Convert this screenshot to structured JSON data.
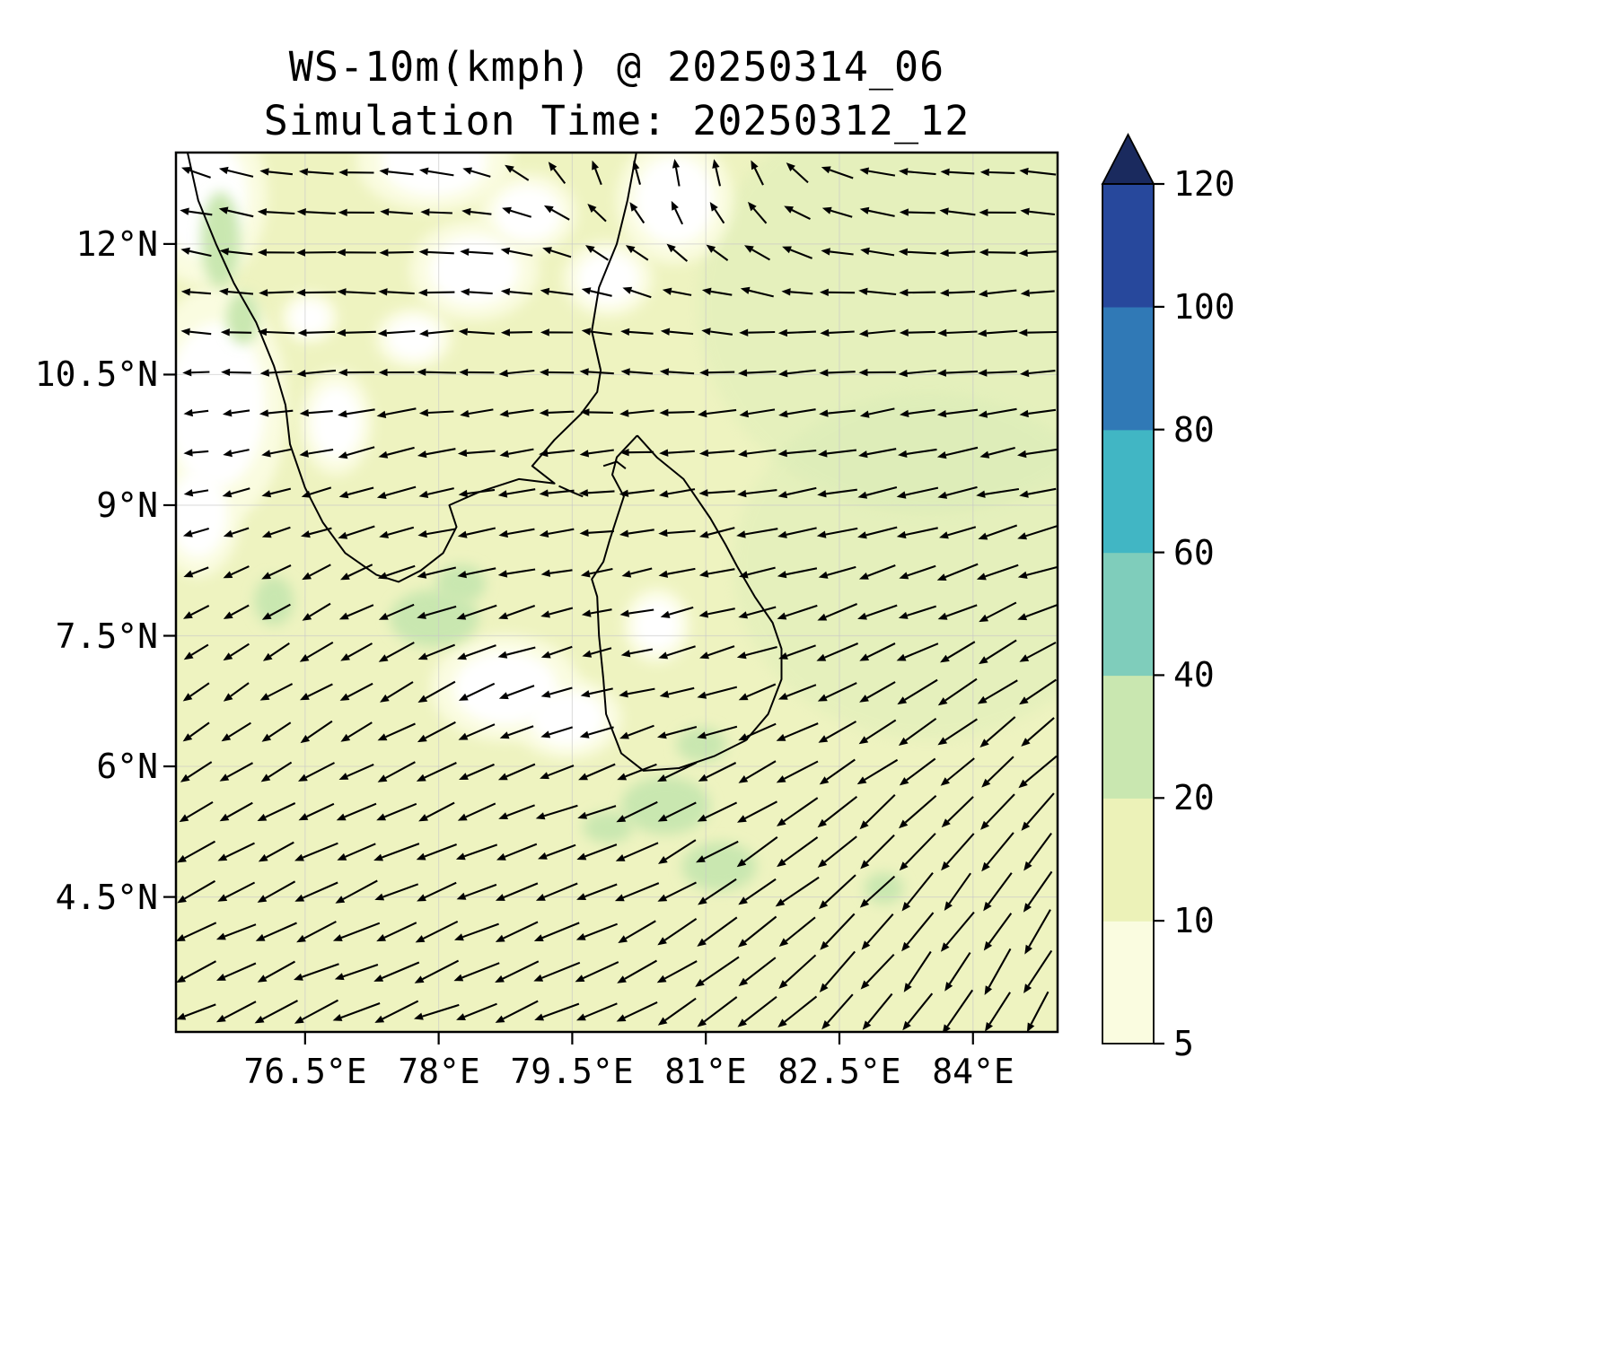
{
  "title": "WS-10m(kmph) @ 20250314_06",
  "subtitle": "Simulation Time: 20250312_12",
  "chart_data": {
    "type": "quiver_map",
    "variable": "WS-10m",
    "units": "kmph",
    "valid_time": "20250314_06",
    "simulation_time": "20250312_12",
    "lon_range": [
      75.05,
      84.95
    ],
    "lat_range": [
      2.95,
      13.05
    ],
    "xtick_values": [
      76.5,
      78,
      79.5,
      81,
      82.5,
      84
    ],
    "xtick_labels": [
      "76.5°E",
      "78°E",
      "79.5°E",
      "81°E",
      "82.5°E",
      "84°E"
    ],
    "ytick_values": [
      12,
      10.5,
      9,
      7.5,
      6,
      4.5
    ],
    "ytick_labels": [
      "12°N",
      "10.5°N",
      "9°N",
      "7.5°N",
      "6°N",
      "4.5°N"
    ],
    "grid": true,
    "colorbar": {
      "orientation": "vertical",
      "bounds": [
        5,
        10,
        20,
        40,
        60,
        80,
        100,
        120
      ],
      "tick_labels": [
        "5",
        "10",
        "20",
        "40",
        "60",
        "80",
        "100",
        "120"
      ],
      "segment_colors": [
        "#fafce0",
        "#ecf2b8",
        "#c9e7b0",
        "#7fcdbb",
        "#41b6c4",
        "#3079b6",
        "#27489c"
      ],
      "over_color": "#1a2a5e",
      "extend": "max"
    },
    "background_level_color": "#eef3c0",
    "wind_field": {
      "lons": [
        75.4,
        76.2,
        77.0,
        77.8,
        78.6,
        79.4,
        80.2,
        81.0,
        81.8,
        82.6,
        83.4,
        84.2
      ],
      "lats": [
        13.0,
        12.2,
        11.4,
        10.6,
        9.8,
        9.0,
        8.2,
        7.4,
        6.6,
        5.8,
        5.0,
        4.2,
        3.4
      ],
      "angle_deg": [
        [
          165,
          170,
          175,
          172,
          160,
          120,
          95,
          95,
          110,
          168,
          172,
          175
        ],
        [
          170,
          175,
          178,
          175,
          170,
          150,
          130,
          120,
          150,
          172,
          175,
          178
        ],
        [
          175,
          180,
          182,
          180,
          178,
          172,
          165,
          168,
          175,
          178,
          180,
          182
        ],
        [
          180,
          183,
          185,
          183,
          182,
          180,
          178,
          180,
          182,
          184,
          185,
          186
        ],
        [
          185,
          188,
          190,
          188,
          186,
          184,
          183,
          185,
          187,
          188,
          190,
          190
        ],
        [
          195,
          195,
          195,
          192,
          190,
          188,
          186,
          188,
          190,
          192,
          193,
          194
        ],
        [
          205,
          205,
          202,
          198,
          195,
          192,
          190,
          192,
          194,
          196,
          198,
          198
        ],
        [
          215,
          212,
          208,
          205,
          200,
          196,
          194,
          196,
          198,
          202,
          205,
          208
        ],
        [
          215,
          212,
          210,
          206,
          202,
          198,
          196,
          198,
          202,
          208,
          212,
          215
        ],
        [
          210,
          208,
          206,
          204,
          202,
          200,
          200,
          204,
          210,
          215,
          220,
          225
        ],
        [
          208,
          206,
          205,
          204,
          203,
          202,
          205,
          210,
          216,
          222,
          228,
          232
        ],
        [
          206,
          205,
          204,
          203,
          202,
          203,
          207,
          212,
          218,
          225,
          230,
          235
        ],
        [
          205,
          204,
          203,
          202,
          202,
          204,
          208,
          214,
          220,
          227,
          233,
          238
        ]
      ],
      "speed_rel": [
        [
          0.5,
          0.55,
          0.6,
          0.5,
          0.4,
          0.35,
          0.3,
          0.35,
          0.4,
          0.5,
          0.55,
          0.55
        ],
        [
          0.5,
          0.6,
          0.6,
          0.55,
          0.45,
          0.35,
          0.3,
          0.3,
          0.4,
          0.5,
          0.55,
          0.55
        ],
        [
          0.45,
          0.6,
          0.65,
          0.6,
          0.5,
          0.45,
          0.4,
          0.45,
          0.5,
          0.55,
          0.6,
          0.6
        ],
        [
          0.35,
          0.55,
          0.65,
          0.6,
          0.55,
          0.5,
          0.5,
          0.55,
          0.6,
          0.6,
          0.62,
          0.62
        ],
        [
          0.3,
          0.45,
          0.6,
          0.62,
          0.58,
          0.55,
          0.55,
          0.6,
          0.62,
          0.64,
          0.65,
          0.65
        ],
        [
          0.3,
          0.4,
          0.55,
          0.65,
          0.6,
          0.55,
          0.55,
          0.62,
          0.66,
          0.68,
          0.7,
          0.7
        ],
        [
          0.35,
          0.45,
          0.6,
          0.7,
          0.65,
          0.5,
          0.5,
          0.62,
          0.68,
          0.7,
          0.72,
          0.72
        ],
        [
          0.4,
          0.5,
          0.65,
          0.75,
          0.7,
          0.45,
          0.5,
          0.65,
          0.7,
          0.74,
          0.76,
          0.76
        ],
        [
          0.45,
          0.55,
          0.65,
          0.7,
          0.6,
          0.4,
          0.55,
          0.7,
          0.75,
          0.78,
          0.8,
          0.8
        ],
        [
          0.6,
          0.68,
          0.72,
          0.75,
          0.72,
          0.65,
          0.72,
          0.8,
          0.84,
          0.86,
          0.88,
          0.88
        ],
        [
          0.7,
          0.75,
          0.8,
          0.82,
          0.8,
          0.78,
          0.82,
          0.86,
          0.9,
          0.92,
          0.92,
          0.9
        ],
        [
          0.75,
          0.8,
          0.84,
          0.86,
          0.85,
          0.84,
          0.86,
          0.9,
          0.94,
          0.95,
          0.95,
          0.92
        ],
        [
          0.78,
          0.82,
          0.86,
          0.88,
          0.87,
          0.86,
          0.88,
          0.92,
          0.95,
          0.96,
          0.96,
          0.93
        ]
      ]
    },
    "white_patches": [
      [
        75.35,
        12.55,
        0.5,
        0.7
      ],
      [
        75.5,
        10.15,
        0.55,
        0.95
      ],
      [
        75.3,
        8.9,
        0.33,
        0.5
      ],
      [
        76.85,
        9.95,
        0.28,
        0.42
      ],
      [
        77.95,
        12.95,
        0.6,
        0.4
      ],
      [
        78.4,
        11.7,
        0.5,
        0.4
      ],
      [
        79.0,
        12.35,
        0.38,
        0.32
      ],
      [
        80.65,
        12.5,
        0.45,
        0.5
      ],
      [
        79.9,
        11.6,
        0.35,
        0.3
      ],
      [
        78.75,
        6.9,
        0.58,
        0.42
      ],
      [
        79.45,
        6.55,
        0.42,
        0.32
      ],
      [
        80.45,
        7.62,
        0.26,
        0.3
      ],
      [
        77.72,
        10.92,
        0.3,
        0.24
      ],
      [
        76.55,
        11.15,
        0.22,
        0.2
      ]
    ],
    "green_patches": [
      [
        77.95,
        7.7,
        0.5,
        0.33
      ],
      [
        78.25,
        8.1,
        0.28,
        0.22
      ],
      [
        80.55,
        5.55,
        0.5,
        0.33
      ],
      [
        81.15,
        4.85,
        0.42,
        0.28
      ],
      [
        80.95,
        6.25,
        0.28,
        0.2
      ],
      [
        75.55,
        12.05,
        0.22,
        0.55
      ],
      [
        75.8,
        11.15,
        0.18,
        0.3
      ],
      [
        79.9,
        5.3,
        0.28,
        0.18
      ],
      [
        76.15,
        7.9,
        0.22,
        0.28
      ],
      [
        83.0,
        4.6,
        0.22,
        0.18
      ]
    ],
    "tint_patches": [
      [
        83.5,
        11.3,
        2.6,
        2.4
      ],
      [
        83.5,
        8.3,
        2.2,
        2.0
      ]
    ],
    "coastlines": {
      "india": [
        [
          75.18,
          13.05
        ],
        [
          75.3,
          12.5
        ],
        [
          75.5,
          12.0
        ],
        [
          75.7,
          11.55
        ],
        [
          75.95,
          11.1
        ],
        [
          76.15,
          10.6
        ],
        [
          76.28,
          10.15
        ],
        [
          76.33,
          9.7
        ],
        [
          76.5,
          9.2
        ],
        [
          76.7,
          8.8
        ],
        [
          76.95,
          8.45
        ],
        [
          77.3,
          8.2
        ],
        [
          77.55,
          8.12
        ],
        [
          77.8,
          8.25
        ],
        [
          78.05,
          8.45
        ],
        [
          78.2,
          8.75
        ],
        [
          78.12,
          9.0
        ],
        [
          78.45,
          9.15
        ],
        [
          78.9,
          9.3
        ],
        [
          79.3,
          9.25
        ],
        [
          79.05,
          9.45
        ],
        [
          79.3,
          9.75
        ],
        [
          79.6,
          10.05
        ],
        [
          79.78,
          10.3
        ],
        [
          79.82,
          10.55
        ],
        [
          79.72,
          11.0
        ],
        [
          79.8,
          11.5
        ],
        [
          80.0,
          12.0
        ],
        [
          80.12,
          12.5
        ],
        [
          80.22,
          13.05
        ]
      ],
      "sri_lanka": [
        [
          80.23,
          9.8
        ],
        [
          80.45,
          9.55
        ],
        [
          80.75,
          9.3
        ],
        [
          81.05,
          8.85
        ],
        [
          81.22,
          8.55
        ],
        [
          81.35,
          8.3
        ],
        [
          81.55,
          7.95
        ],
        [
          81.75,
          7.65
        ],
        [
          81.85,
          7.35
        ],
        [
          81.85,
          7.0
        ],
        [
          81.7,
          6.6
        ],
        [
          81.45,
          6.3
        ],
        [
          81.1,
          6.12
        ],
        [
          80.7,
          5.98
        ],
        [
          80.3,
          5.95
        ],
        [
          80.05,
          6.15
        ],
        [
          79.88,
          6.6
        ],
        [
          79.85,
          7.0
        ],
        [
          79.8,
          7.5
        ],
        [
          79.78,
          7.95
        ],
        [
          79.72,
          8.15
        ],
        [
          79.85,
          8.35
        ],
        [
          79.92,
          8.6
        ],
        [
          80.0,
          8.85
        ],
        [
          80.08,
          9.1
        ],
        [
          79.95,
          9.35
        ],
        [
          80.0,
          9.55
        ],
        [
          80.23,
          9.8
        ]
      ],
      "islands": [
        [
          [
            79.35,
            9.22
          ],
          [
            79.5,
            9.15
          ],
          [
            79.62,
            9.1
          ]
        ],
        [
          [
            79.85,
            9.45
          ],
          [
            80.0,
            9.5
          ],
          [
            80.1,
            9.42
          ]
        ]
      ]
    }
  }
}
